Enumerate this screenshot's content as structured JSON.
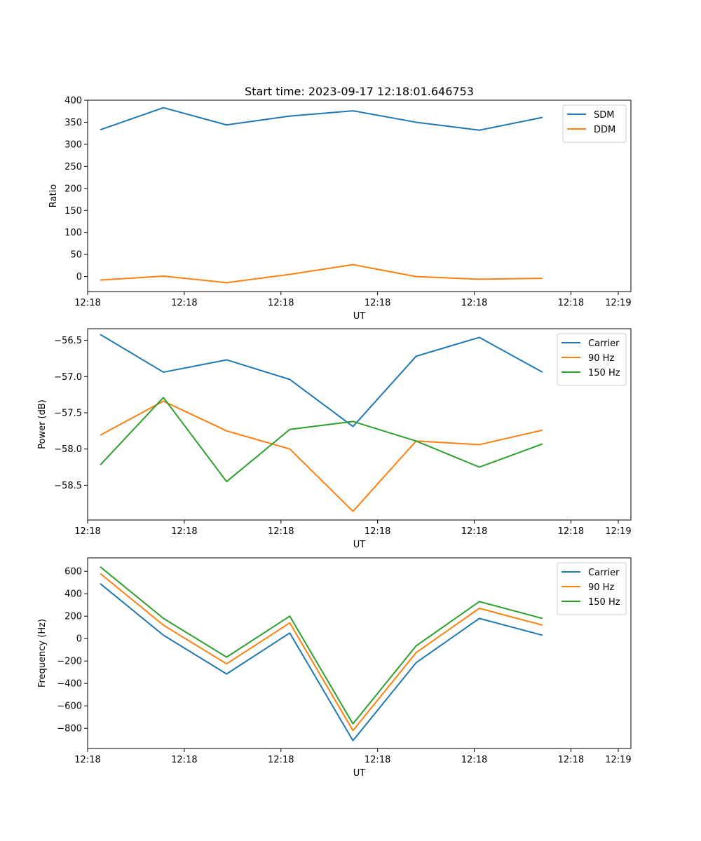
{
  "figure": {
    "title": "Start time: 2023-09-17 12:18:01.646753"
  },
  "chart_data": [
    {
      "type": "line",
      "name": "ratio",
      "title": "Start time: 2023-09-17 12:18:01.646753",
      "xlabel": "UT",
      "ylabel": "Ratio",
      "x": [
        1,
        2,
        3,
        4,
        5,
        6,
        7,
        8
      ],
      "xlim": [
        0.8,
        9.4
      ],
      "xticks": [
        {
          "x": 0.8,
          "label": "12:18"
        },
        {
          "x": 2.33,
          "label": "12:18"
        },
        {
          "x": 3.86,
          "label": "12:18"
        },
        {
          "x": 5.39,
          "label": "12:18"
        },
        {
          "x": 6.92,
          "label": "12:18"
        },
        {
          "x": 8.45,
          "label": "12:18"
        },
        {
          "x": 9.2,
          "label": "12:19"
        }
      ],
      "ylim": [
        -34,
        400
      ],
      "yticks": [
        {
          "y": 0,
          "label": "0"
        },
        {
          "y": 50,
          "label": "50"
        },
        {
          "y": 100,
          "label": "100"
        },
        {
          "y": 150,
          "label": "150"
        },
        {
          "y": 200,
          "label": "200"
        },
        {
          "y": 250,
          "label": "250"
        },
        {
          "y": 300,
          "label": "300"
        },
        {
          "y": 350,
          "label": "350"
        },
        {
          "y": 400,
          "label": "400"
        }
      ],
      "legend": "top-right",
      "grid": false,
      "series": [
        {
          "name": "SDM",
          "color": "#1f77b4",
          "values": [
            333,
            383,
            344,
            364,
            376,
            350,
            332,
            361
          ]
        },
        {
          "name": "DDM",
          "color": "#ff7f0e",
          "values": [
            -8,
            1,
            -14,
            5,
            27,
            0,
            -6,
            -4
          ]
        }
      ]
    },
    {
      "type": "line",
      "name": "power",
      "title": "",
      "xlabel": "UT",
      "ylabel": "Power (dB)",
      "x": [
        1,
        2,
        3,
        4,
        5,
        6,
        7,
        8
      ],
      "xlim": [
        0.8,
        9.4
      ],
      "xticks": [
        {
          "x": 0.8,
          "label": "12:18"
        },
        {
          "x": 2.33,
          "label": "12:18"
        },
        {
          "x": 3.86,
          "label": "12:18"
        },
        {
          "x": 5.39,
          "label": "12:18"
        },
        {
          "x": 6.92,
          "label": "12:18"
        },
        {
          "x": 8.45,
          "label": "12:18"
        },
        {
          "x": 9.2,
          "label": "12:19"
        }
      ],
      "ylim": [
        -58.98,
        -56.34
      ],
      "yticks": [
        {
          "y": -58.5,
          "label": "−58.5"
        },
        {
          "y": -58.0,
          "label": "−58.0"
        },
        {
          "y": -57.5,
          "label": "−57.5"
        },
        {
          "y": -57.0,
          "label": "−57.0"
        },
        {
          "y": -56.5,
          "label": "−56.5"
        }
      ],
      "legend": "top-right",
      "grid": false,
      "series": [
        {
          "name": "Carrier",
          "color": "#1f77b4",
          "values": [
            -56.42,
            -56.94,
            -56.77,
            -57.04,
            -57.69,
            -56.72,
            -56.46,
            -56.94
          ]
        },
        {
          "name": "90 Hz",
          "color": "#ff7f0e",
          "values": [
            -57.81,
            -57.34,
            -57.75,
            -58.0,
            -58.86,
            -57.89,
            -57.94,
            -57.74
          ]
        },
        {
          "name": "150 Hz",
          "color": "#2ca02c",
          "values": [
            -58.22,
            -57.29,
            -58.45,
            -57.73,
            -57.62,
            -57.89,
            -58.25,
            -57.93
          ]
        }
      ]
    },
    {
      "type": "line",
      "name": "frequency",
      "title": "",
      "xlabel": "UT",
      "ylabel": "Frequency (Hz)",
      "x": [
        1,
        2,
        3,
        4,
        5,
        6,
        7,
        8
      ],
      "xlim": [
        0.8,
        9.4
      ],
      "xticks": [
        {
          "x": 0.8,
          "label": "12:18"
        },
        {
          "x": 2.33,
          "label": "12:18"
        },
        {
          "x": 3.86,
          "label": "12:18"
        },
        {
          "x": 5.39,
          "label": "12:18"
        },
        {
          "x": 6.92,
          "label": "12:18"
        },
        {
          "x": 8.45,
          "label": "12:18"
        },
        {
          "x": 9.2,
          "label": "12:19"
        }
      ],
      "ylim": [
        -980,
        720
      ],
      "yticks": [
        {
          "y": -800,
          "label": "−800"
        },
        {
          "y": -600,
          "label": "−600"
        },
        {
          "y": -400,
          "label": "−400"
        },
        {
          "y": -200,
          "label": "−200"
        },
        {
          "y": 0,
          "label": "0"
        },
        {
          "y": 200,
          "label": "200"
        },
        {
          "y": 400,
          "label": "400"
        },
        {
          "y": 600,
          "label": "600"
        }
      ],
      "legend": "top-right",
      "grid": false,
      "series": [
        {
          "name": "Carrier",
          "color": "#1f77b4",
          "values": [
            490,
            30,
            -315,
            50,
            -910,
            -215,
            180,
            30
          ]
        },
        {
          "name": "90 Hz",
          "color": "#ff7f0e",
          "values": [
            580,
            120,
            -225,
            140,
            -820,
            -125,
            270,
            120
          ]
        },
        {
          "name": "150 Hz",
          "color": "#2ca02c",
          "values": [
            640,
            180,
            -165,
            200,
            -760,
            -65,
            330,
            180
          ]
        }
      ]
    }
  ]
}
